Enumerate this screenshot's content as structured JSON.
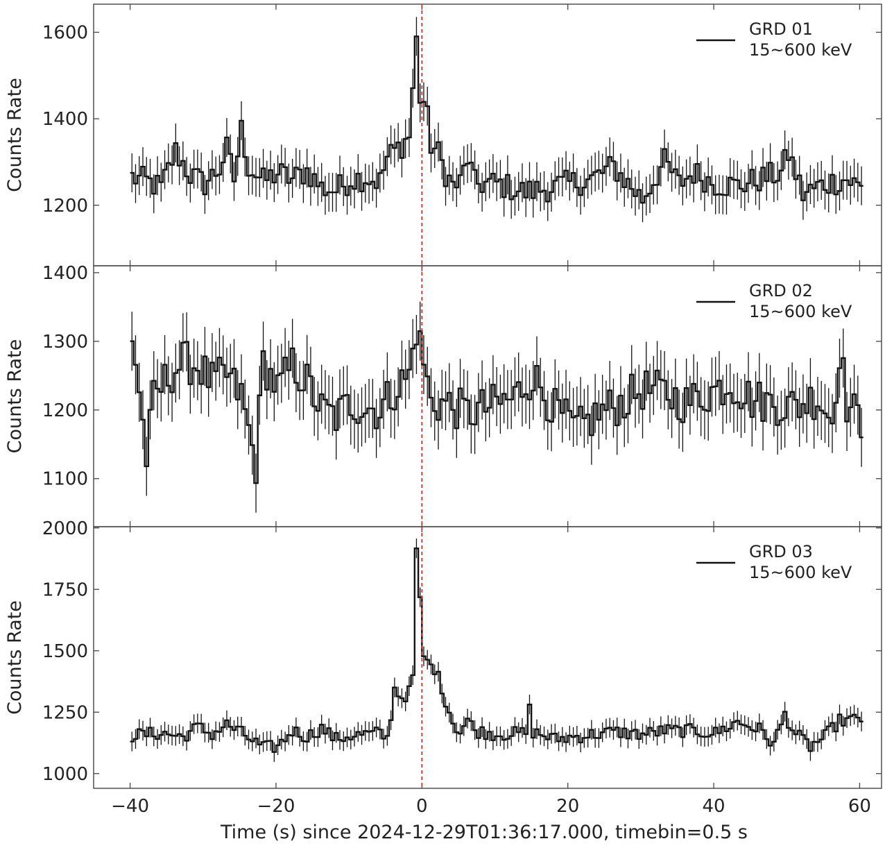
{
  "figure": {
    "xlabel": "Time (s) since 2024-12-29T01:36:17.000, timebin=0.5 s",
    "trigger_line_color": "#c0392b",
    "line_color": "#111111"
  },
  "chart_data": [
    {
      "type": "line",
      "ylabel": "Counts Rate",
      "legend": [
        "GRD 01",
        "15~600 keV"
      ],
      "legend_position": "top-right",
      "xlim": [
        -45,
        63
      ],
      "ylim": [
        1060,
        1665
      ],
      "yticks": [
        1200,
        1400,
        1600
      ],
      "xticks": [
        -40,
        -20,
        0,
        20,
        40,
        60
      ],
      "series": [
        {
          "binsize": 0.5,
          "anchors": [
            [
              -40,
              1265
            ],
            [
              -38,
              1255
            ],
            [
              -36,
              1240
            ],
            [
              -34,
              1325
            ],
            [
              -32,
              1270
            ],
            [
              -30,
              1250
            ],
            [
              -28,
              1285
            ],
            [
              -27,
              1330
            ],
            [
              -26,
              1260
            ],
            [
              -25,
              1375
            ],
            [
              -24,
              1290
            ],
            [
              -22,
              1255
            ],
            [
              -20,
              1275
            ],
            [
              -18,
              1260
            ],
            [
              -16,
              1280
            ],
            [
              -14,
              1240
            ],
            [
              -12,
              1235
            ],
            [
              -10,
              1260
            ],
            [
              -8,
              1265
            ],
            [
              -6,
              1255
            ],
            [
              -5,
              1310
            ],
            [
              -3,
              1340
            ],
            [
              -2,
              1360
            ],
            [
              -1,
              1580
            ],
            [
              -0.5,
              1450
            ],
            [
              0,
              1440
            ],
            [
              0.5,
              1400
            ],
            [
              1,
              1340
            ],
            [
              2,
              1320
            ],
            [
              3,
              1275
            ],
            [
              4,
              1245
            ],
            [
              5,
              1250
            ],
            [
              6,
              1310
            ],
            [
              7,
              1250
            ],
            [
              10,
              1250
            ],
            [
              14,
              1230
            ],
            [
              17,
              1240
            ],
            [
              20,
              1250
            ],
            [
              23,
              1260
            ],
            [
              26,
              1290
            ],
            [
              28,
              1250
            ],
            [
              30,
              1215
            ],
            [
              33,
              1300
            ],
            [
              35,
              1250
            ],
            [
              37,
              1275
            ],
            [
              40,
              1250
            ],
            [
              43,
              1245
            ],
            [
              46,
              1260
            ],
            [
              49,
              1275
            ],
            [
              50,
              1320
            ],
            [
              52,
              1225
            ],
            [
              55,
              1250
            ],
            [
              58,
              1260
            ],
            [
              60,
              1240
            ]
          ],
          "noise_amp": 32,
          "error_half": 45
        }
      ]
    },
    {
      "type": "line",
      "ylabel": "Counts Rate",
      "legend": [
        "GRD 02",
        "15~600 keV"
      ],
      "legend_position": "top-right",
      "xlim": [
        -45,
        63
      ],
      "ylim": [
        1030,
        1410
      ],
      "yticks": [
        1100,
        1200,
        1300,
        1400
      ],
      "xticks": [
        -40,
        -20,
        0,
        20,
        40,
        60
      ],
      "series": [
        {
          "binsize": 0.5,
          "anchors": [
            [
              -40,
              1310
            ],
            [
              -39,
              1230
            ],
            [
              -38,
              1130
            ],
            [
              -37,
              1215
            ],
            [
              -35,
              1250
            ],
            [
              -33,
              1270
            ],
            [
              -31,
              1265
            ],
            [
              -29,
              1240
            ],
            [
              -27,
              1250
            ],
            [
              -25,
              1220
            ],
            [
              -23,
              1120
            ],
            [
              -22,
              1270
            ],
            [
              -20,
              1230
            ],
            [
              -18,
              1265
            ],
            [
              -16,
              1240
            ],
            [
              -14,
              1200
            ],
            [
              -12,
              1190
            ],
            [
              -10,
              1210
            ],
            [
              -8,
              1205
            ],
            [
              -6,
              1200
            ],
            [
              -4,
              1230
            ],
            [
              -2,
              1250
            ],
            [
              -1,
              1320
            ],
            [
              0,
              1270
            ],
            [
              1,
              1210
            ],
            [
              3,
              1210
            ],
            [
              6,
              1195
            ],
            [
              9,
              1205
            ],
            [
              12,
              1215
            ],
            [
              15,
              1250
            ],
            [
              18,
              1200
            ],
            [
              21,
              1170
            ],
            [
              24,
              1195
            ],
            [
              27,
              1210
            ],
            [
              30,
              1230
            ],
            [
              33,
              1225
            ],
            [
              36,
              1210
            ],
            [
              39,
              1225
            ],
            [
              42,
              1240
            ],
            [
              45,
              1215
            ],
            [
              48,
              1210
            ],
            [
              51,
              1205
            ],
            [
              54,
              1220
            ],
            [
              56,
              1185
            ],
            [
              57,
              1290
            ],
            [
              58,
              1210
            ],
            [
              60,
              1180
            ]
          ],
          "noise_amp": 32,
          "error_half": 43
        }
      ]
    },
    {
      "type": "line",
      "ylabel": "Counts Rate",
      "legend": [
        "GRD 03",
        "15~600 keV"
      ],
      "legend_position": "top-right",
      "xlim": [
        -45,
        63
      ],
      "ylim": [
        940,
        2005
      ],
      "yticks": [
        1000,
        1250,
        1500,
        1750,
        2000
      ],
      "xticks": [
        -40,
        -20,
        0,
        20,
        40,
        60
      ],
      "series": [
        {
          "binsize": 0.5,
          "anchors": [
            [
              -40,
              1155
            ],
            [
              -36,
              1165
            ],
            [
              -33,
              1150
            ],
            [
              -31,
              1190
            ],
            [
              -29,
              1160
            ],
            [
              -27,
              1200
            ],
            [
              -25,
              1165
            ],
            [
              -22,
              1105
            ],
            [
              -20,
              1110
            ],
            [
              -18,
              1175
            ],
            [
              -16,
              1150
            ],
            [
              -14,
              1185
            ],
            [
              -12,
              1140
            ],
            [
              -10,
              1155
            ],
            [
              -8,
              1160
            ],
            [
              -6,
              1165
            ],
            [
              -5,
              1140
            ],
            [
              -4.5,
              1240
            ],
            [
              -4,
              1345
            ],
            [
              -3,
              1310
            ],
            [
              -2,
              1330
            ],
            [
              -1.5,
              1400
            ],
            [
              -1,
              1900
            ],
            [
              -0.5,
              1700
            ],
            [
              0,
              1480
            ],
            [
              0.5,
              1450
            ],
            [
              1,
              1440
            ],
            [
              1.5,
              1430
            ],
            [
              2,
              1390
            ],
            [
              3,
              1300
            ],
            [
              4,
              1210
            ],
            [
              5,
              1170
            ],
            [
              6,
              1220
            ],
            [
              7,
              1175
            ],
            [
              10,
              1160
            ],
            [
              14,
              1165
            ],
            [
              14.5,
              1260
            ],
            [
              15,
              1170
            ],
            [
              18,
              1140
            ],
            [
              22,
              1155
            ],
            [
              26,
              1170
            ],
            [
              30,
              1160
            ],
            [
              33,
              1175
            ],
            [
              36,
              1175
            ],
            [
              40,
              1165
            ],
            [
              43,
              1210
            ],
            [
              46,
              1180
            ],
            [
              48,
              1120
            ],
            [
              49.5,
              1240
            ],
            [
              51,
              1160
            ],
            [
              53,
              1110
            ],
            [
              55,
              1150
            ],
            [
              57,
              1215
            ],
            [
              60,
              1220
            ]
          ],
          "noise_amp": 28,
          "error_half": 40
        }
      ]
    }
  ]
}
